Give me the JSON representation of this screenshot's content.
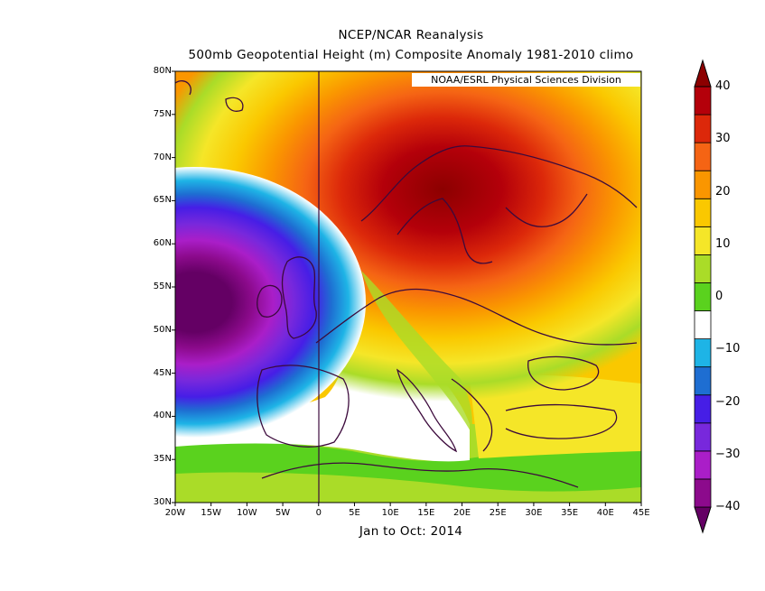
{
  "title": {
    "line1": "NCEP/NCAR Reanalysis",
    "line2": "500mb Geopotential Height (m) Composite Anomaly 1981-2010 climo",
    "period": "Jan to Oct: 2014",
    "credit": "NOAA/ESRL Physical Sciences Division"
  },
  "map": {
    "lat_labels": [
      "80N",
      "75N",
      "70N",
      "65N",
      "60N",
      "55N",
      "50N",
      "45N",
      "40N",
      "35N",
      "30N"
    ],
    "lon_labels": [
      "20W",
      "15W",
      "10W",
      "5W",
      "0",
      "5E",
      "10E",
      "15E",
      "20E",
      "25E",
      "30E",
      "35E",
      "40E",
      "45E"
    ],
    "lat_range": [
      30,
      80
    ],
    "lon_range": [
      -20,
      45
    ],
    "anomaly_centers": [
      {
        "kind": "positive",
        "lon": 22,
        "lat": 68,
        "value_m": 42
      },
      {
        "kind": "negative",
        "lon": -17,
        "lat": 53,
        "value_m": -38
      }
    ]
  },
  "colorbar": {
    "labels": [
      "40",
      "30",
      "20",
      "10",
      "0",
      "-10",
      "-20",
      "-30",
      "-40"
    ],
    "levels": [
      -40,
      -35,
      -30,
      -25,
      -20,
      -15,
      -10,
      -5,
      5,
      10,
      15,
      20,
      25,
      30,
      35,
      40
    ],
    "colors": [
      "#640064",
      "#8c0a8c",
      "#aa1ec8",
      "#7828dc",
      "#461ee6",
      "#1e6ed2",
      "#1eb4e6",
      "#ffffff",
      "#5ad21e",
      "#aadc28",
      "#f5e628",
      "#fac800",
      "#fa9600",
      "#f56414",
      "#dc280a",
      "#b4000a",
      "#8c0000"
    ]
  }
}
